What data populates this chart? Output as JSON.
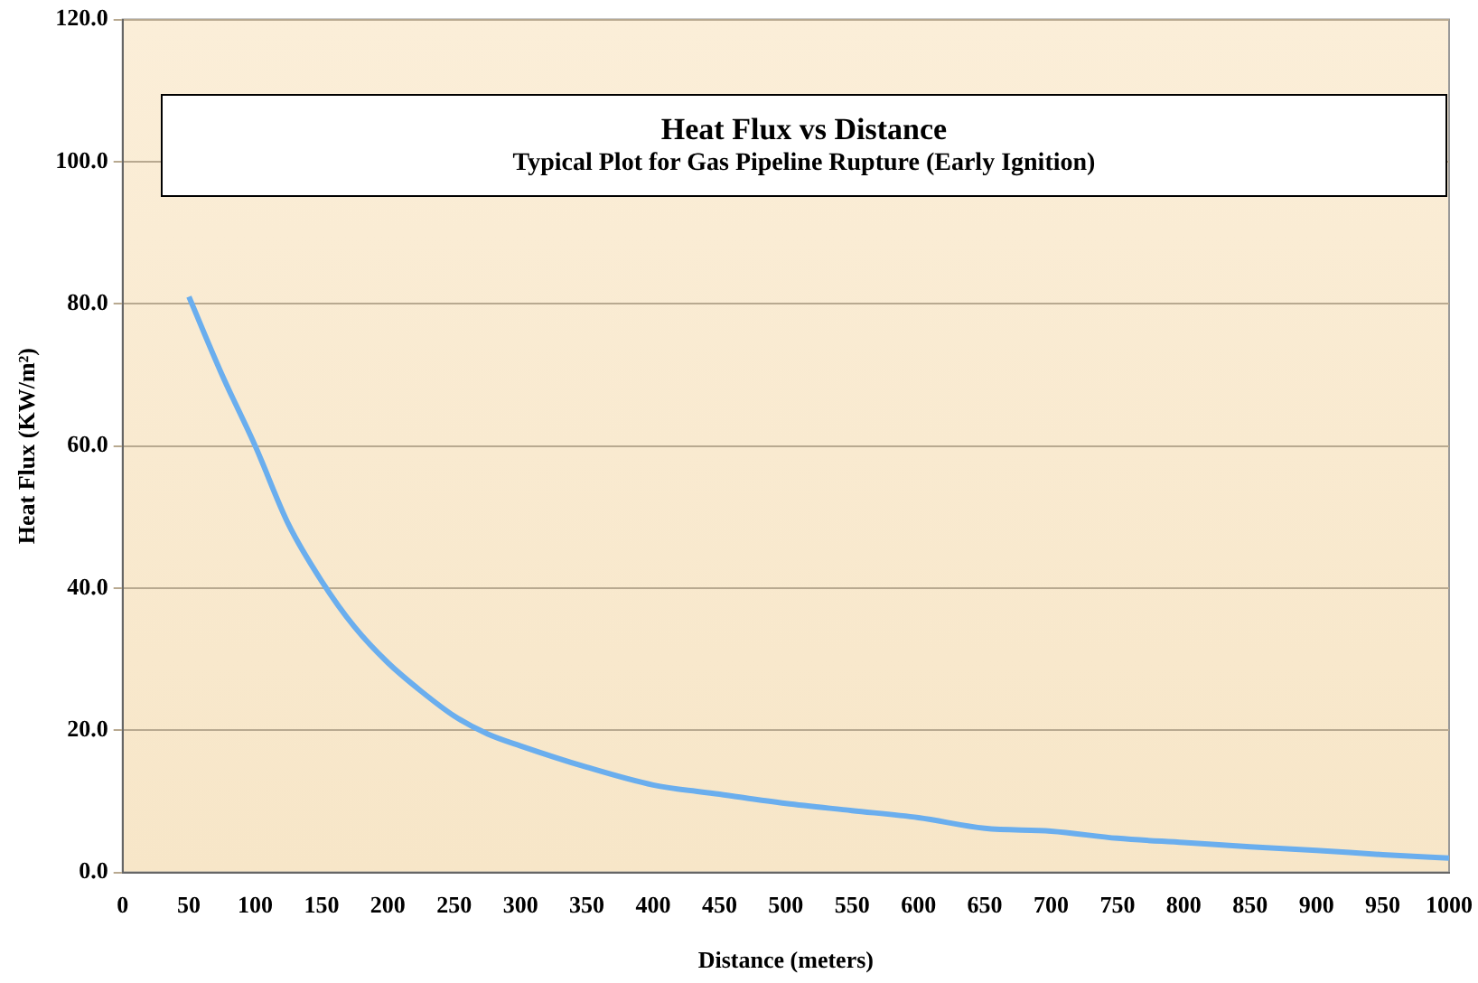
{
  "chart_data": {
    "type": "line",
    "title": "Heat Flux vs Distance",
    "subtitle": "Typical Plot for Gas Pipeline Rupture (Early Ignition)",
    "xlabel": "Distance (meters)",
    "ylabel": "Heat Flux (KW/m²)",
    "x": [
      50,
      75,
      100,
      125,
      150,
      175,
      200,
      225,
      250,
      275,
      300,
      350,
      400,
      450,
      500,
      550,
      600,
      650,
      700,
      750,
      800,
      850,
      900,
      950,
      1000
    ],
    "series": [
      {
        "color": "#6aaeee",
        "values": [
          81,
          70,
          60,
          49,
          41,
          34.5,
          29.5,
          25.5,
          22,
          19.5,
          17.8,
          14.8,
          12.3,
          11,
          9.7,
          8.7,
          7.7,
          6.2,
          5.8,
          4.8,
          4.2,
          3.6,
          3.1,
          2.5,
          2.0
        ]
      }
    ],
    "xlim": [
      0,
      1000
    ],
    "xticks": [
      0,
      50,
      100,
      150,
      200,
      250,
      300,
      350,
      400,
      450,
      500,
      550,
      600,
      650,
      700,
      750,
      800,
      850,
      900,
      950,
      1000
    ],
    "ylim": [
      0,
      120
    ],
    "yticks": [
      {
        "value": 0,
        "label": "0.0"
      },
      {
        "value": 20,
        "label": "20.0"
      },
      {
        "value": 40,
        "label": "40.0"
      },
      {
        "value": 60,
        "label": "60.0"
      },
      {
        "value": 80,
        "label": "80.0"
      },
      {
        "value": 100,
        "label": "100.0"
      },
      {
        "value": 120,
        "label": "120.0"
      }
    ],
    "grid": "y",
    "legend": false,
    "marker": "none",
    "line_style": "solid"
  }
}
